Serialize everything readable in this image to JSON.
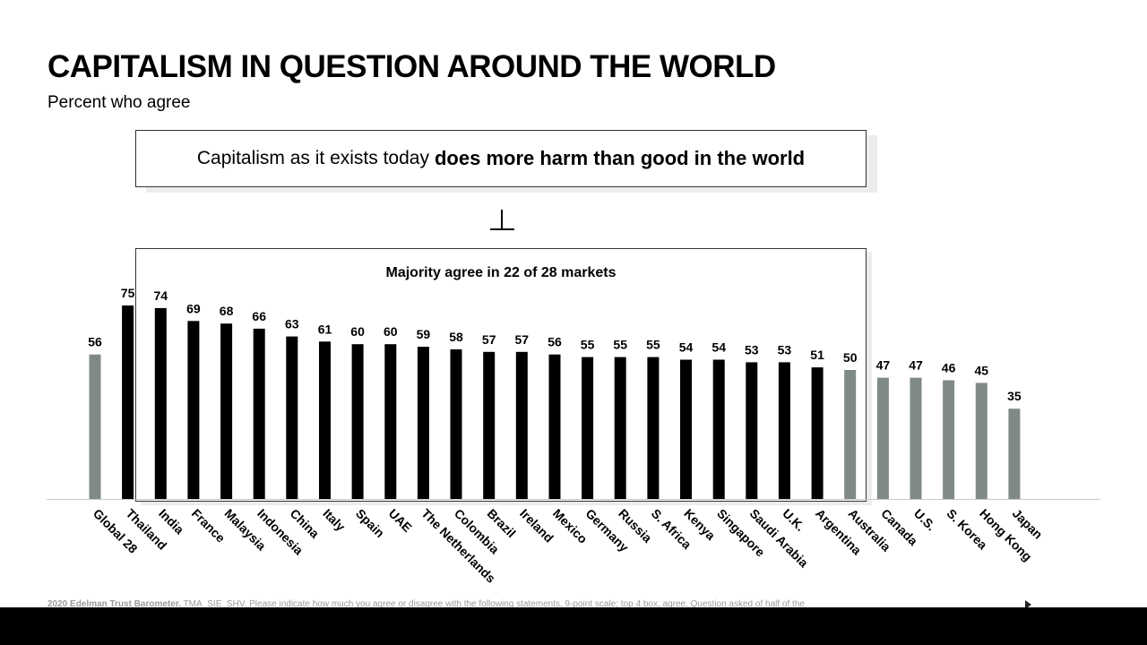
{
  "title": "CAPITALISM IN QUESTION AROUND THE WORLD",
  "subtitle": "Percent who agree",
  "statement": {
    "normal": "Capitalism as it exists today",
    "bold": "does more harm than good in the world"
  },
  "majority_label": "Majority agree in 22 of 28 markets",
  "footnote": {
    "source": "2020 Edelman Trust Barometer.",
    "text": "TMA_SIE_SHV. Please indicate how much you agree or disagree with the following statements. 9-point scale; top 4 box, agree. Question asked of half of the"
  },
  "colors": {
    "majority_bar": "#000000",
    "other_bar": "#7f8a88",
    "baseline": "#c8c8c8"
  },
  "chart_data": {
    "type": "bar",
    "categories": [
      "Global 28",
      "Thailand",
      "India",
      "France",
      "Malaysia",
      "Indonesia",
      "China",
      "Italy",
      "Spain",
      "UAE",
      "The Netherlands",
      "Colombia",
      "Brazil",
      "Ireland",
      "Mexico",
      "Germany",
      "Russia",
      "S. Africa",
      "Kenya",
      "Singapore",
      "Saudi Arabia",
      "U.K.",
      "Argentina",
      "Australia",
      "Canada",
      "U.S.",
      "S. Korea",
      "Hong Kong",
      "Japan"
    ],
    "values": [
      56,
      75,
      74,
      69,
      68,
      66,
      63,
      61,
      60,
      60,
      59,
      58,
      57,
      57,
      56,
      55,
      55,
      55,
      54,
      54,
      53,
      53,
      51,
      50,
      47,
      47,
      46,
      45,
      35
    ],
    "groups": [
      "global",
      "majority",
      "majority",
      "majority",
      "majority",
      "majority",
      "majority",
      "majority",
      "majority",
      "majority",
      "majority",
      "majority",
      "majority",
      "majority",
      "majority",
      "majority",
      "majority",
      "majority",
      "majority",
      "majority",
      "majority",
      "majority",
      "majority",
      "other",
      "other",
      "other",
      "other",
      "other",
      "other"
    ],
    "ylim": [
      0,
      100
    ],
    "xlabel": "",
    "ylabel": "",
    "grid": false,
    "legend": "none"
  }
}
